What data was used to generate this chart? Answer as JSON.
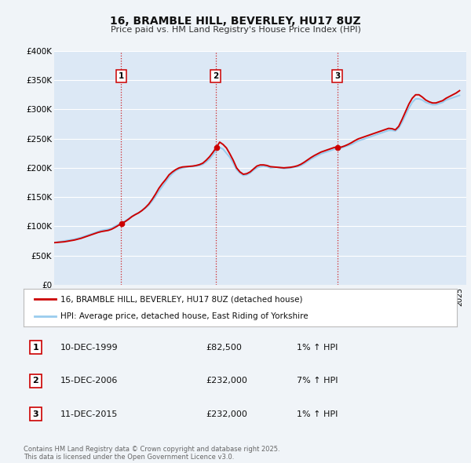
{
  "title": "16, BRAMBLE HILL, BEVERLEY, HU17 8UZ",
  "subtitle": "Price paid vs. HM Land Registry's House Price Index (HPI)",
  "bg_color": "#f0f4f8",
  "plot_bg_color": "#dce8f5",
  "grid_color": "#ffffff",
  "ylim": [
    0,
    400000
  ],
  "yticks": [
    0,
    50000,
    100000,
    150000,
    200000,
    250000,
    300000,
    350000,
    400000
  ],
  "ytick_labels": [
    "£0",
    "£50K",
    "£100K",
    "£150K",
    "£200K",
    "£250K",
    "£300K",
    "£350K",
    "£400K"
  ],
  "xlim_start": 1995.0,
  "xlim_end": 2025.5,
  "sale_color": "#cc0000",
  "hpi_color": "#99ccee",
  "vline_color": "#cc0000",
  "sale_label": "16, BRAMBLE HILL, BEVERLEY, HU17 8UZ (detached house)",
  "hpi_label": "HPI: Average price, detached house, East Riding of Yorkshire",
  "transactions": [
    {
      "num": 1,
      "date": "10-DEC-1999",
      "year": 1999.96,
      "price": 82500,
      "pct": "1%",
      "dir": "↑"
    },
    {
      "num": 2,
      "date": "15-DEC-2006",
      "year": 2006.96,
      "price": 232000,
      "pct": "7%",
      "dir": "↑"
    },
    {
      "num": 3,
      "date": "11-DEC-2015",
      "year": 2015.96,
      "price": 232000,
      "pct": "1%",
      "dir": "↑"
    }
  ],
  "footnote": "Contains HM Land Registry data © Crown copyright and database right 2025.\nThis data is licensed under the Open Government Licence v3.0.",
  "hpi_data_x": [
    1995.0,
    1995.25,
    1995.5,
    1995.75,
    1996.0,
    1996.25,
    1996.5,
    1996.75,
    1997.0,
    1997.25,
    1997.5,
    1997.75,
    1998.0,
    1998.25,
    1998.5,
    1998.75,
    1999.0,
    1999.25,
    1999.5,
    1999.75,
    2000.0,
    2000.25,
    2000.5,
    2000.75,
    2001.0,
    2001.25,
    2001.5,
    2001.75,
    2002.0,
    2002.25,
    2002.5,
    2002.75,
    2003.0,
    2003.25,
    2003.5,
    2003.75,
    2004.0,
    2004.25,
    2004.5,
    2004.75,
    2005.0,
    2005.25,
    2005.5,
    2005.75,
    2006.0,
    2006.25,
    2006.5,
    2006.75,
    2007.0,
    2007.25,
    2007.5,
    2007.75,
    2008.0,
    2008.25,
    2008.5,
    2008.75,
    2009.0,
    2009.25,
    2009.5,
    2009.75,
    2010.0,
    2010.25,
    2010.5,
    2010.75,
    2011.0,
    2011.25,
    2011.5,
    2011.75,
    2012.0,
    2012.25,
    2012.5,
    2012.75,
    2013.0,
    2013.25,
    2013.5,
    2013.75,
    2014.0,
    2014.25,
    2014.5,
    2014.75,
    2015.0,
    2015.25,
    2015.5,
    2015.75,
    2016.0,
    2016.25,
    2016.5,
    2016.75,
    2017.0,
    2017.25,
    2017.5,
    2017.75,
    2018.0,
    2018.25,
    2018.5,
    2018.75,
    2019.0,
    2019.25,
    2019.5,
    2019.75,
    2020.0,
    2020.25,
    2020.5,
    2020.75,
    2021.0,
    2021.25,
    2021.5,
    2021.75,
    2022.0,
    2022.25,
    2022.5,
    2022.75,
    2023.0,
    2023.25,
    2023.5,
    2023.75,
    2024.0,
    2024.25,
    2024.5,
    2024.75,
    2025.0
  ],
  "hpi_data_y": [
    72000,
    73000,
    74000,
    75000,
    76000,
    77000,
    78000,
    79500,
    81000,
    83000,
    85000,
    87000,
    89000,
    91000,
    93000,
    94000,
    95000,
    97000,
    100000,
    103000,
    106000,
    109000,
    113000,
    117000,
    120000,
    123000,
    127000,
    131000,
    136000,
    143000,
    151000,
    160000,
    168000,
    176000,
    184000,
    190000,
    195000,
    198000,
    200000,
    201000,
    202000,
    202500,
    203000,
    204000,
    206000,
    210000,
    215000,
    222000,
    230000,
    235000,
    232000,
    225000,
    218000,
    208000,
    197000,
    191000,
    187000,
    188000,
    191000,
    196000,
    200000,
    202000,
    203000,
    202000,
    200000,
    200500,
    201000,
    200000,
    199000,
    199500,
    200000,
    201000,
    202000,
    204000,
    207000,
    211000,
    215000,
    218000,
    221000,
    224000,
    226000,
    228000,
    230000,
    232000,
    233000,
    234000,
    236000,
    238000,
    240000,
    243000,
    246000,
    248000,
    250000,
    252000,
    254000,
    256000,
    258000,
    260000,
    262000,
    264000,
    264000,
    263000,
    268000,
    278000,
    290000,
    302000,
    312000,
    318000,
    318000,
    316000,
    312000,
    310000,
    308000,
    308000,
    310000,
    312000,
    316000,
    318000,
    320000,
    322000,
    324000
  ],
  "price_paid_x": [
    1995.0,
    1995.25,
    1995.5,
    1995.75,
    1996.0,
    1996.25,
    1996.5,
    1996.75,
    1997.0,
    1997.25,
    1997.5,
    1997.75,
    1998.0,
    1998.25,
    1998.5,
    1998.75,
    1999.0,
    1999.25,
    1999.5,
    1999.75,
    2000.0,
    2000.25,
    2000.5,
    2000.75,
    2001.0,
    2001.25,
    2001.5,
    2001.75,
    2002.0,
    2002.25,
    2002.5,
    2002.75,
    2003.0,
    2003.25,
    2003.5,
    2003.75,
    2004.0,
    2004.25,
    2004.5,
    2004.75,
    2005.0,
    2005.25,
    2005.5,
    2005.75,
    2006.0,
    2006.25,
    2006.5,
    2006.75,
    2007.0,
    2007.25,
    2007.5,
    2007.75,
    2008.0,
    2008.25,
    2008.5,
    2008.75,
    2009.0,
    2009.25,
    2009.5,
    2009.75,
    2010.0,
    2010.25,
    2010.5,
    2010.75,
    2011.0,
    2011.25,
    2011.5,
    2011.75,
    2012.0,
    2012.25,
    2012.5,
    2012.75,
    2013.0,
    2013.25,
    2013.5,
    2013.75,
    2014.0,
    2014.25,
    2014.5,
    2014.75,
    2015.0,
    2015.25,
    2015.5,
    2015.75,
    2016.0,
    2016.25,
    2016.5,
    2016.75,
    2017.0,
    2017.25,
    2017.5,
    2017.75,
    2018.0,
    2018.25,
    2018.5,
    2018.75,
    2019.0,
    2019.25,
    2019.5,
    2019.75,
    2020.0,
    2020.25,
    2020.5,
    2020.75,
    2021.0,
    2021.25,
    2021.5,
    2021.75,
    2022.0,
    2022.25,
    2022.5,
    2022.75,
    2023.0,
    2023.25,
    2023.5,
    2023.75,
    2024.0,
    2024.25,
    2024.5,
    2024.75,
    2025.0
  ],
  "price_paid_y": [
    72000,
    72500,
    73000,
    73500,
    74500,
    75500,
    76500,
    78000,
    79500,
    81500,
    83500,
    85500,
    87500,
    89500,
    91000,
    92000,
    93000,
    95000,
    98000,
    101500,
    105000,
    108000,
    112000,
    116500,
    120000,
    123000,
    127000,
    132000,
    138000,
    146000,
    155000,
    165000,
    173000,
    180000,
    188000,
    193000,
    197000,
    200000,
    201500,
    202000,
    202500,
    203000,
    204000,
    205500,
    208000,
    213000,
    219000,
    226500,
    235000,
    244000,
    240000,
    234000,
    224000,
    213000,
    200000,
    193000,
    189000,
    190000,
    193000,
    198000,
    203000,
    205000,
    205000,
    204000,
    202000,
    201500,
    201000,
    200500,
    200000,
    200500,
    201000,
    202000,
    203500,
    206000,
    209500,
    213500,
    217500,
    221000,
    224000,
    227000,
    229000,
    231000,
    233000,
    235000,
    235000,
    235500,
    237500,
    240000,
    243000,
    246500,
    249500,
    251500,
    253500,
    255500,
    257500,
    259500,
    261500,
    263500,
    265500,
    267500,
    267000,
    265000,
    271000,
    283000,
    296000,
    309000,
    319000,
    325000,
    325000,
    321000,
    316000,
    313000,
    311000,
    311000,
    313000,
    315000,
    319000,
    322000,
    325000,
    328000,
    332000
  ]
}
